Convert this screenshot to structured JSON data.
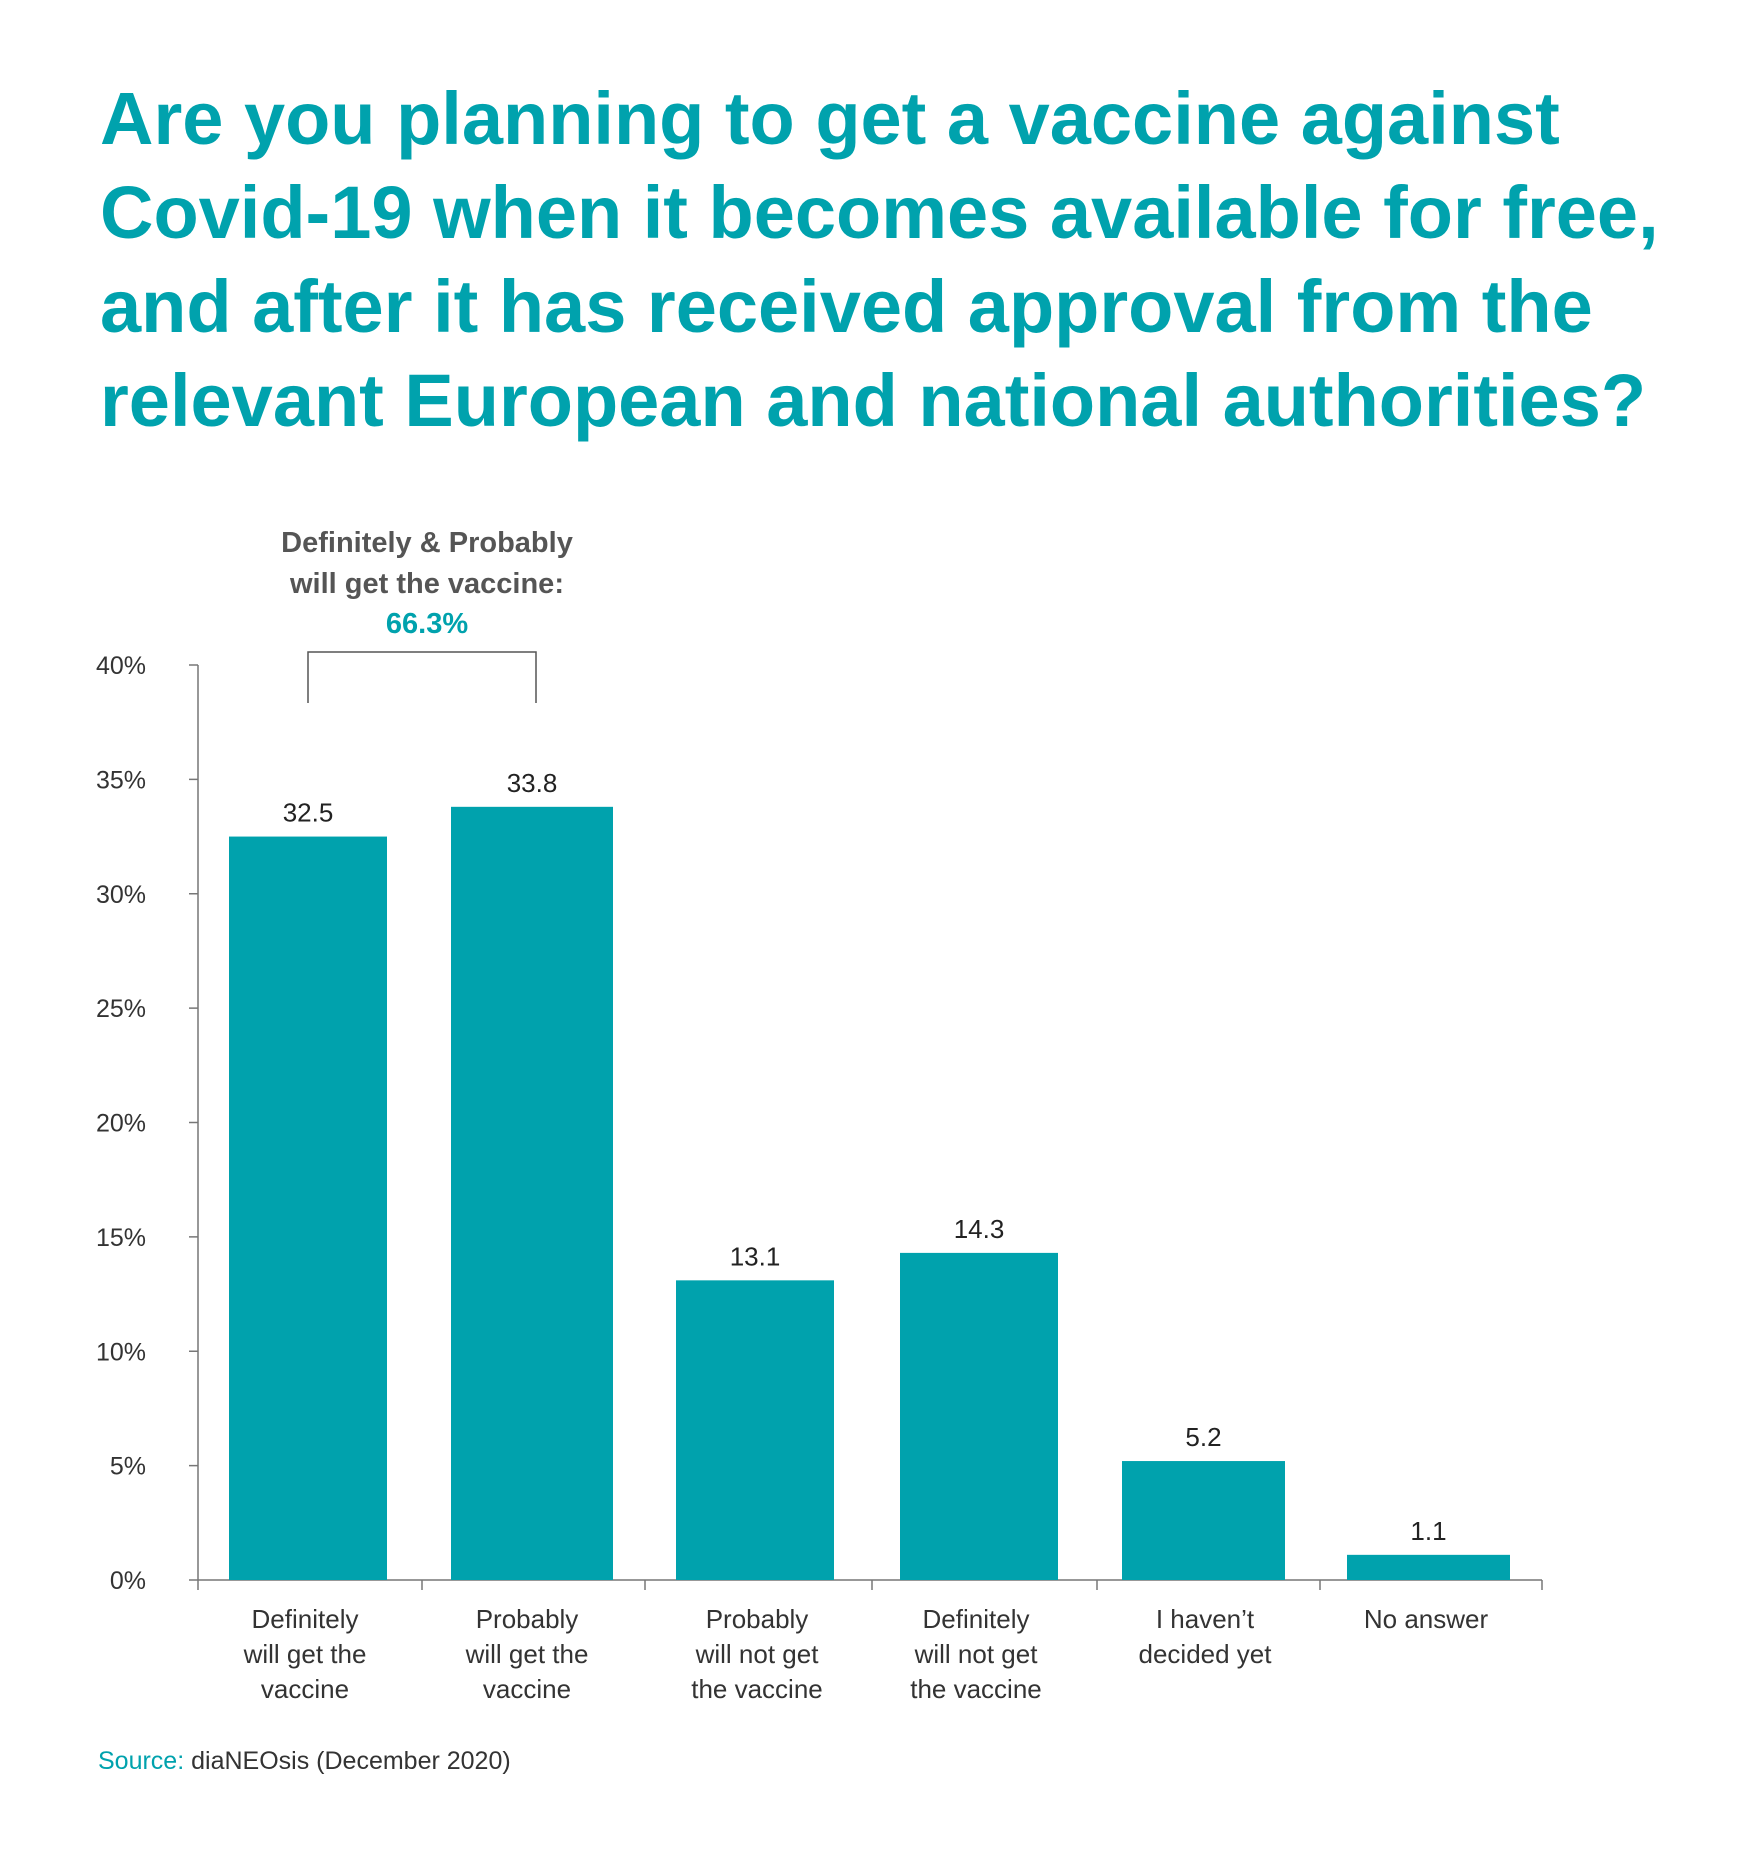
{
  "title": "Are you planning to get a vaccine against\nCovid-19 when it becomes available for free,\nand after it has received approval from the\nrelevant European and national authorities?",
  "annotation": {
    "line1": "Definitely & Probably",
    "line2": "will get the vaccine:",
    "value": "66.3%"
  },
  "source": {
    "label": "Source:",
    "text": " diaNEOsis (December 2020)"
  },
  "colors": {
    "accent": "#00a2ad",
    "text": "#333333",
    "axis": "#777777"
  },
  "chart_data": {
    "type": "bar",
    "categories": [
      [
        "Definitely",
        "will get the",
        "vaccine"
      ],
      [
        "Probably",
        "will get the",
        "vaccine"
      ],
      [
        "Probably",
        "will not get",
        "the vaccine"
      ],
      [
        "Definitely",
        "will not get",
        "the vaccine"
      ],
      [
        "I haven’t",
        "decided yet"
      ],
      [
        "No answer"
      ]
    ],
    "values": [
      32.5,
      33.8,
      13.1,
      14.3,
      5.2,
      1.1
    ],
    "data_labels": [
      "32.5",
      "33.8",
      "13.1",
      "14.3",
      "5.2",
      "1.1"
    ],
    "ylim": [
      0,
      40
    ],
    "yticks": [
      0,
      5,
      10,
      15,
      20,
      25,
      30,
      35,
      40
    ],
    "ytick_labels": [
      "0%",
      "5%",
      "10%",
      "15%",
      "20%",
      "25%",
      "30%",
      "35%",
      "40%"
    ],
    "grid": false
  }
}
